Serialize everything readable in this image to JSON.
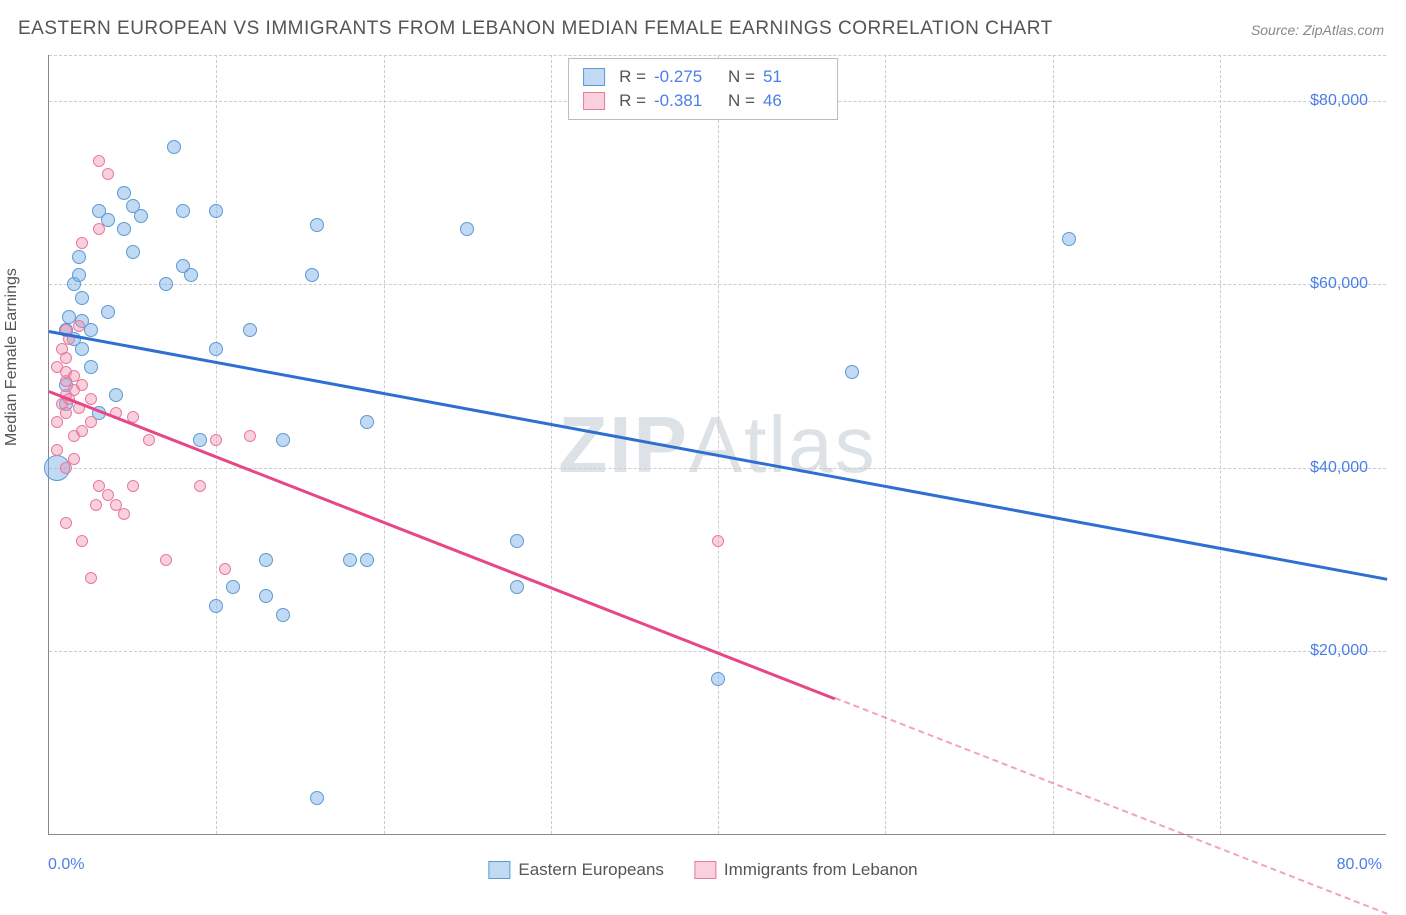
{
  "title": "EASTERN EUROPEAN VS IMMIGRANTS FROM LEBANON MEDIAN FEMALE EARNINGS CORRELATION CHART",
  "source_label": "Source: ",
  "source_name": "ZipAtlas.com",
  "y_axis_label": "Median Female Earnings",
  "watermark_bold": "ZIP",
  "watermark_rest": "Atlas",
  "chart": {
    "type": "scatter",
    "background_color": "#ffffff",
    "grid_color": "#cccccc",
    "axis_color": "#888888",
    "text_color": "#555555",
    "value_color": "#4a7ee8",
    "xlim": [
      0,
      80
    ],
    "ylim": [
      0,
      85000
    ],
    "x_min_label": "0.0%",
    "x_max_label": "80.0%",
    "y_ticks": [
      20000,
      40000,
      60000,
      80000
    ],
    "y_tick_labels": [
      "$20,000",
      "$40,000",
      "$60,000",
      "$80,000"
    ],
    "x_gridlines": [
      10,
      20,
      30,
      40,
      50,
      60,
      70
    ],
    "series": [
      {
        "name": "Eastern Europeans",
        "color_fill": "rgba(120,170,230,0.45)",
        "color_stroke": "#5a9bd5",
        "R": "-0.275",
        "N": "51",
        "trend": {
          "x1": 0,
          "y1": 55000,
          "x2": 80,
          "y2": 28000,
          "color": "#2e6fd1",
          "dash_from_x": 80
        },
        "points": [
          [
            0.5,
            40000,
            26
          ],
          [
            1,
            47000,
            14
          ],
          [
            1,
            49000,
            14
          ],
          [
            1,
            55000,
            14
          ],
          [
            1.2,
            56500,
            14
          ],
          [
            1.5,
            54000,
            14
          ],
          [
            1.5,
            60000,
            14
          ],
          [
            1.8,
            61000,
            14
          ],
          [
            1.8,
            63000,
            14
          ],
          [
            2,
            53000,
            14
          ],
          [
            2,
            56000,
            14
          ],
          [
            2,
            58500,
            14
          ],
          [
            2.5,
            51000,
            14
          ],
          [
            2.5,
            55000,
            14
          ],
          [
            3,
            46000,
            14
          ],
          [
            3,
            68000,
            14
          ],
          [
            3.5,
            57000,
            14
          ],
          [
            3.5,
            67000,
            14
          ],
          [
            4,
            48000,
            14
          ],
          [
            4.5,
            66000,
            14
          ],
          [
            4.5,
            70000,
            14
          ],
          [
            5,
            63500,
            14
          ],
          [
            5,
            68500,
            14
          ],
          [
            5.5,
            67500,
            14
          ],
          [
            7,
            60000,
            14
          ],
          [
            7.5,
            75000,
            14
          ],
          [
            8,
            62000,
            14
          ],
          [
            8,
            68000,
            14
          ],
          [
            8.5,
            61000,
            14
          ],
          [
            9,
            43000,
            14
          ],
          [
            10,
            25000,
            14
          ],
          [
            10,
            53000,
            14
          ],
          [
            10,
            68000,
            14
          ],
          [
            11,
            27000,
            14
          ],
          [
            12,
            55000,
            14
          ],
          [
            13,
            26000,
            14
          ],
          [
            13,
            30000,
            14
          ],
          [
            14,
            24000,
            14
          ],
          [
            14,
            43000,
            14
          ],
          [
            15.7,
            61000,
            14
          ],
          [
            16,
            4000,
            14
          ],
          [
            16,
            66500,
            14
          ],
          [
            18,
            30000,
            14
          ],
          [
            19,
            30000,
            14
          ],
          [
            19,
            45000,
            14
          ],
          [
            25,
            66000,
            14
          ],
          [
            28,
            32000,
            14
          ],
          [
            28,
            27000,
            14
          ],
          [
            40,
            17000,
            14
          ],
          [
            48,
            50500,
            14
          ],
          [
            61,
            65000,
            14
          ]
        ]
      },
      {
        "name": "Immigrants from Lebanon",
        "color_fill": "rgba(240,140,170,0.40)",
        "color_stroke": "#e87aa0",
        "R": "-0.381",
        "N": "46",
        "trend": {
          "x1": 0,
          "y1": 48500,
          "x2": 47,
          "y2": 15000,
          "color": "#e64887",
          "dash_from_x": 47,
          "dash_x2": 80,
          "dash_y2": -8500
        },
        "points": [
          [
            0.5,
            42000,
            12
          ],
          [
            0.5,
            45000,
            12
          ],
          [
            0.5,
            51000,
            12
          ],
          [
            0.8,
            47000,
            12
          ],
          [
            0.8,
            53000,
            12
          ],
          [
            1,
            34000,
            12
          ],
          [
            1,
            40000,
            12
          ],
          [
            1,
            46000,
            12
          ],
          [
            1,
            48000,
            12
          ],
          [
            1,
            49500,
            12
          ],
          [
            1,
            50500,
            12
          ],
          [
            1,
            52000,
            12
          ],
          [
            1,
            55000,
            12
          ],
          [
            1.2,
            47500,
            12
          ],
          [
            1.2,
            54000,
            12
          ],
          [
            1.5,
            41000,
            12
          ],
          [
            1.5,
            43500,
            12
          ],
          [
            1.5,
            48500,
            12
          ],
          [
            1.5,
            50000,
            12
          ],
          [
            1.8,
            46500,
            12
          ],
          [
            1.8,
            55500,
            12
          ],
          [
            2,
            32000,
            12
          ],
          [
            2,
            44000,
            12
          ],
          [
            2,
            49000,
            12
          ],
          [
            2,
            64500,
            12
          ],
          [
            2.5,
            28000,
            12
          ],
          [
            2.5,
            45000,
            12
          ],
          [
            2.5,
            47500,
            12
          ],
          [
            2.8,
            36000,
            12
          ],
          [
            3,
            38000,
            12
          ],
          [
            3,
            66000,
            12
          ],
          [
            3,
            73500,
            12
          ],
          [
            3.5,
            37000,
            12
          ],
          [
            3.5,
            72000,
            12
          ],
          [
            4,
            36000,
            12
          ],
          [
            4,
            46000,
            12
          ],
          [
            4.5,
            35000,
            12
          ],
          [
            5,
            38000,
            12
          ],
          [
            5,
            45500,
            12
          ],
          [
            6,
            43000,
            12
          ],
          [
            7,
            30000,
            12
          ],
          [
            9,
            38000,
            12
          ],
          [
            10,
            43000,
            12
          ],
          [
            10.5,
            29000,
            12
          ],
          [
            12,
            43500,
            12
          ],
          [
            40,
            32000,
            12
          ]
        ]
      }
    ]
  },
  "legend_bottom": [
    {
      "label": "Eastern Europeans",
      "fill": "rgba(120,170,230,0.45)",
      "stroke": "#5a9bd5"
    },
    {
      "label": "Immigrants from Lebanon",
      "fill": "rgba(240,140,170,0.40)",
      "stroke": "#e87aa0"
    }
  ]
}
